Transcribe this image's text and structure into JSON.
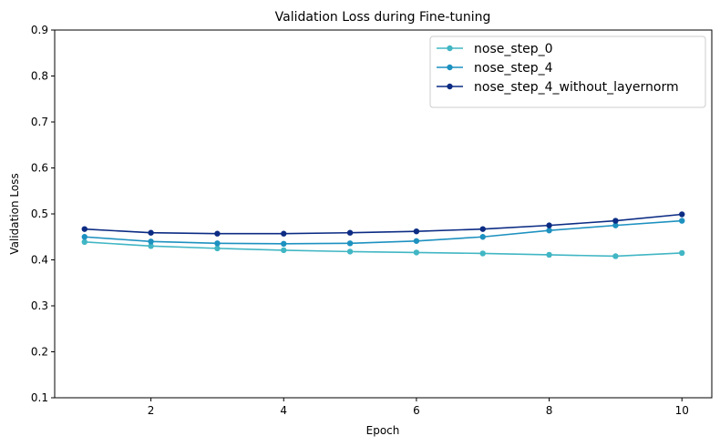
{
  "chart_data": {
    "type": "line",
    "title": "Validation Loss during Fine-tuning",
    "xlabel": "Epoch",
    "ylabel": "Validation Loss",
    "x": [
      1,
      2,
      3,
      4,
      5,
      6,
      7,
      8,
      9,
      10
    ],
    "xlim": [
      0.55,
      10.45
    ],
    "ylim": [
      0.1,
      0.9
    ],
    "xticks": [
      2,
      4,
      6,
      8,
      10
    ],
    "yticks": [
      0.1,
      0.2,
      0.3,
      0.4,
      0.5,
      0.6,
      0.7,
      0.8,
      0.9
    ],
    "grid": false,
    "legend_position": "top-right",
    "series": [
      {
        "name": "nose_step_0",
        "color": "#41b6c4",
        "values": [
          0.439,
          0.43,
          0.425,
          0.421,
          0.418,
          0.416,
          0.414,
          0.411,
          0.408,
          0.415
        ]
      },
      {
        "name": "nose_step_4",
        "color": "#1d91c0",
        "values": [
          0.45,
          0.44,
          0.436,
          0.435,
          0.436,
          0.441,
          0.45,
          0.464,
          0.475,
          0.485
        ]
      },
      {
        "name": "nose_step_4_without_layernorm",
        "color": "#0c2c84",
        "values": [
          0.467,
          0.459,
          0.457,
          0.457,
          0.459,
          0.462,
          0.467,
          0.475,
          0.485,
          0.499
        ]
      }
    ]
  }
}
